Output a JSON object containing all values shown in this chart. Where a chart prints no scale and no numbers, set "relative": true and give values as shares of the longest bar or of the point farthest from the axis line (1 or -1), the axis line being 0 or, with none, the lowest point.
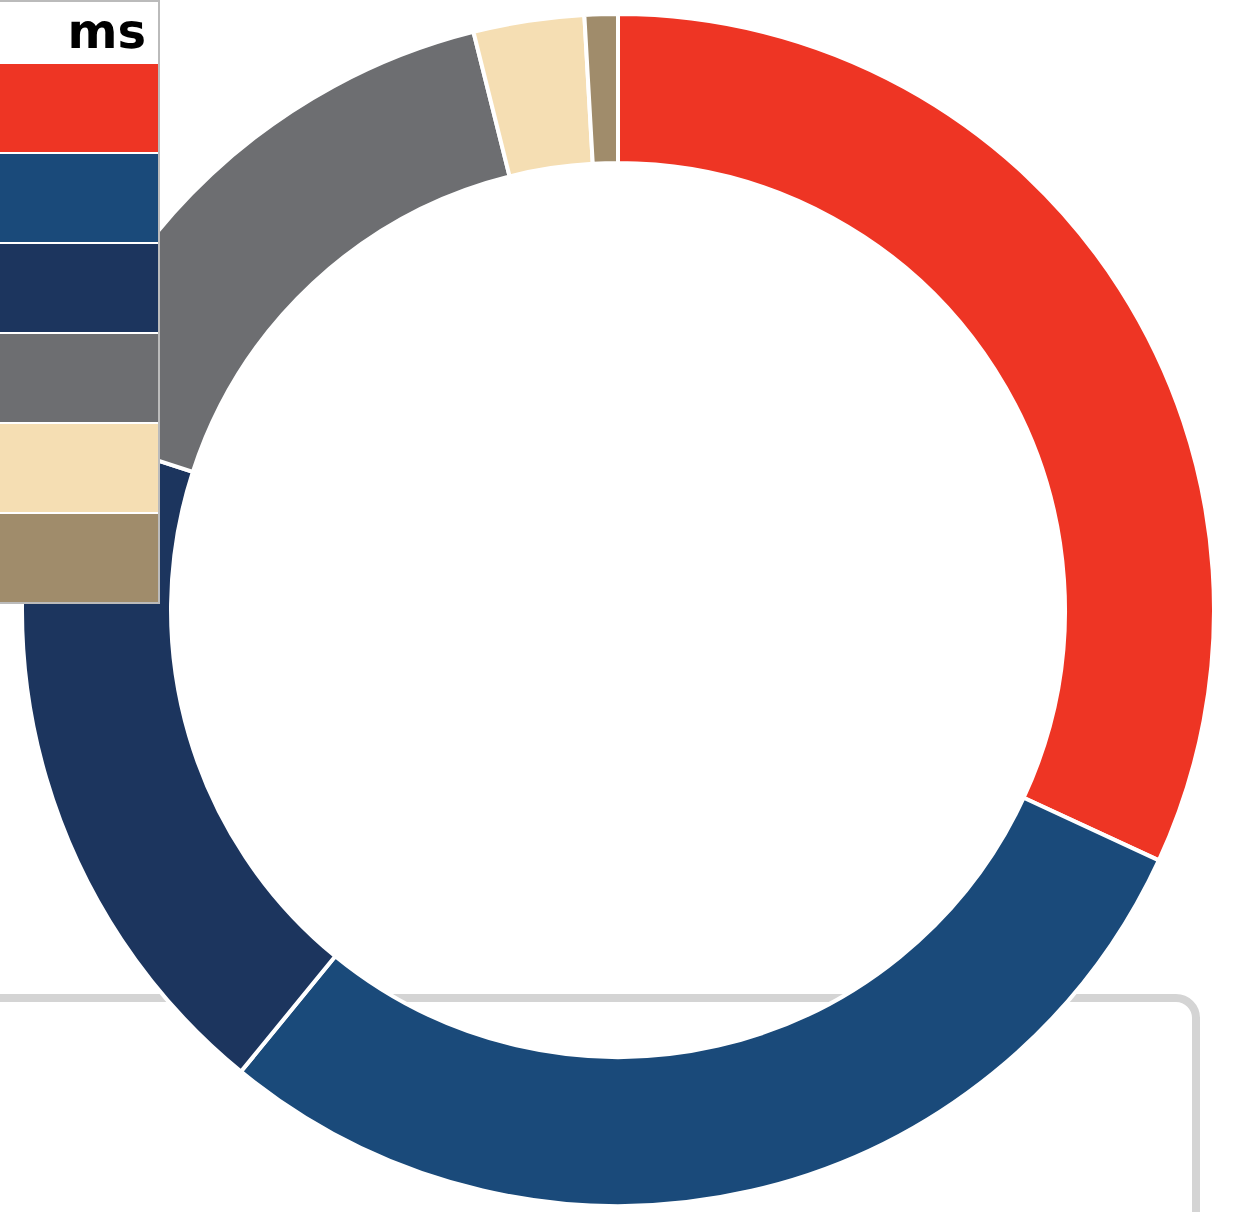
{
  "chart_data": {
    "type": "donut",
    "legend_title": "ms",
    "relative": true,
    "categories": [
      null,
      null,
      null,
      null,
      null,
      null
    ],
    "values": [
      31.9,
      29.0,
      19.1,
      16.1,
      3.0,
      0.9
    ],
    "colors": [
      "#ee3524",
      "#1a4a7a",
      "#1c355e",
      "#6d6e71",
      "#f5deb3",
      "#a08c6b"
    ]
  }
}
